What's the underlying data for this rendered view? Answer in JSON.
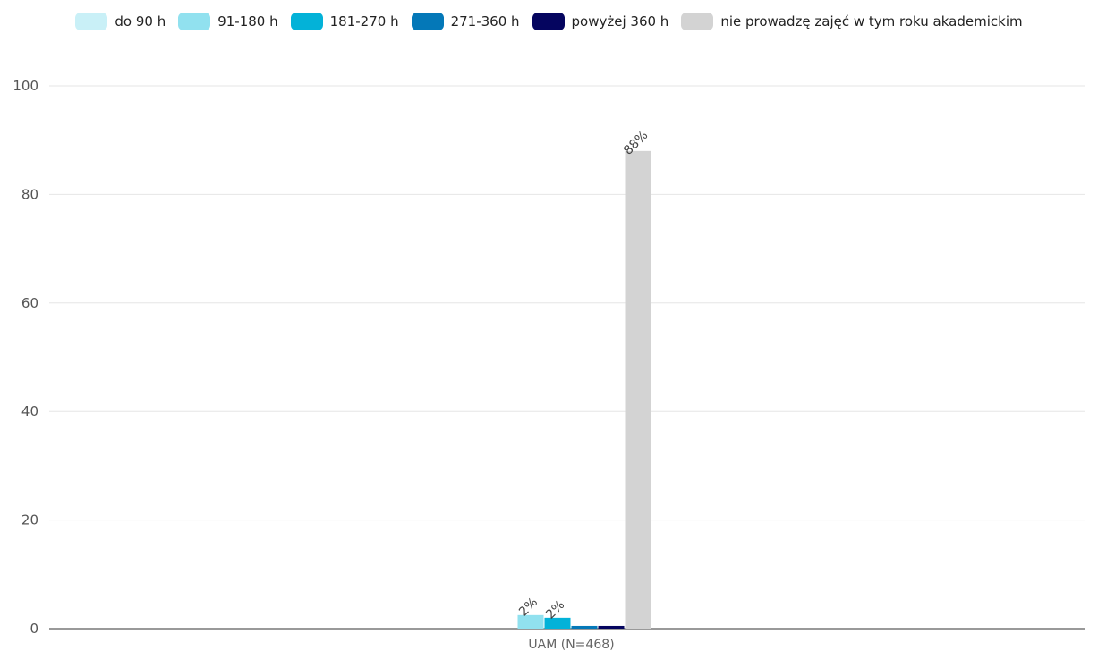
{
  "chart_data": {
    "type": "bar",
    "categories": [
      "UAM (N=468)"
    ],
    "series": [
      {
        "name": "do 90 h",
        "values": [
          0
        ],
        "color": "#c9f0f7",
        "label": ""
      },
      {
        "name": "91-180 h",
        "values": [
          2.5
        ],
        "color": "#91e1ef",
        "label": "2%"
      },
      {
        "name": "181-270 h",
        "values": [
          2
        ],
        "color": "#03b2d8",
        "label": "2%"
      },
      {
        "name": "271-360 h",
        "values": [
          0.5
        ],
        "color": "#0478b8",
        "label": ""
      },
      {
        "name": "powyżej 360 h",
        "values": [
          0.5
        ],
        "color": "#05055f",
        "label": ""
      },
      {
        "name": "nie prowadzę zajęć w tym roku akademickim",
        "values": [
          88
        ],
        "color": "#d3d3d3",
        "label": "88%"
      }
    ],
    "ylim": [
      0,
      100
    ],
    "yticks": [
      "0",
      "20",
      "40",
      "60",
      "80",
      "100"
    ],
    "ytick_values": [
      0,
      20,
      40,
      60,
      80,
      100
    ],
    "grid": true,
    "legend_position": "top"
  }
}
